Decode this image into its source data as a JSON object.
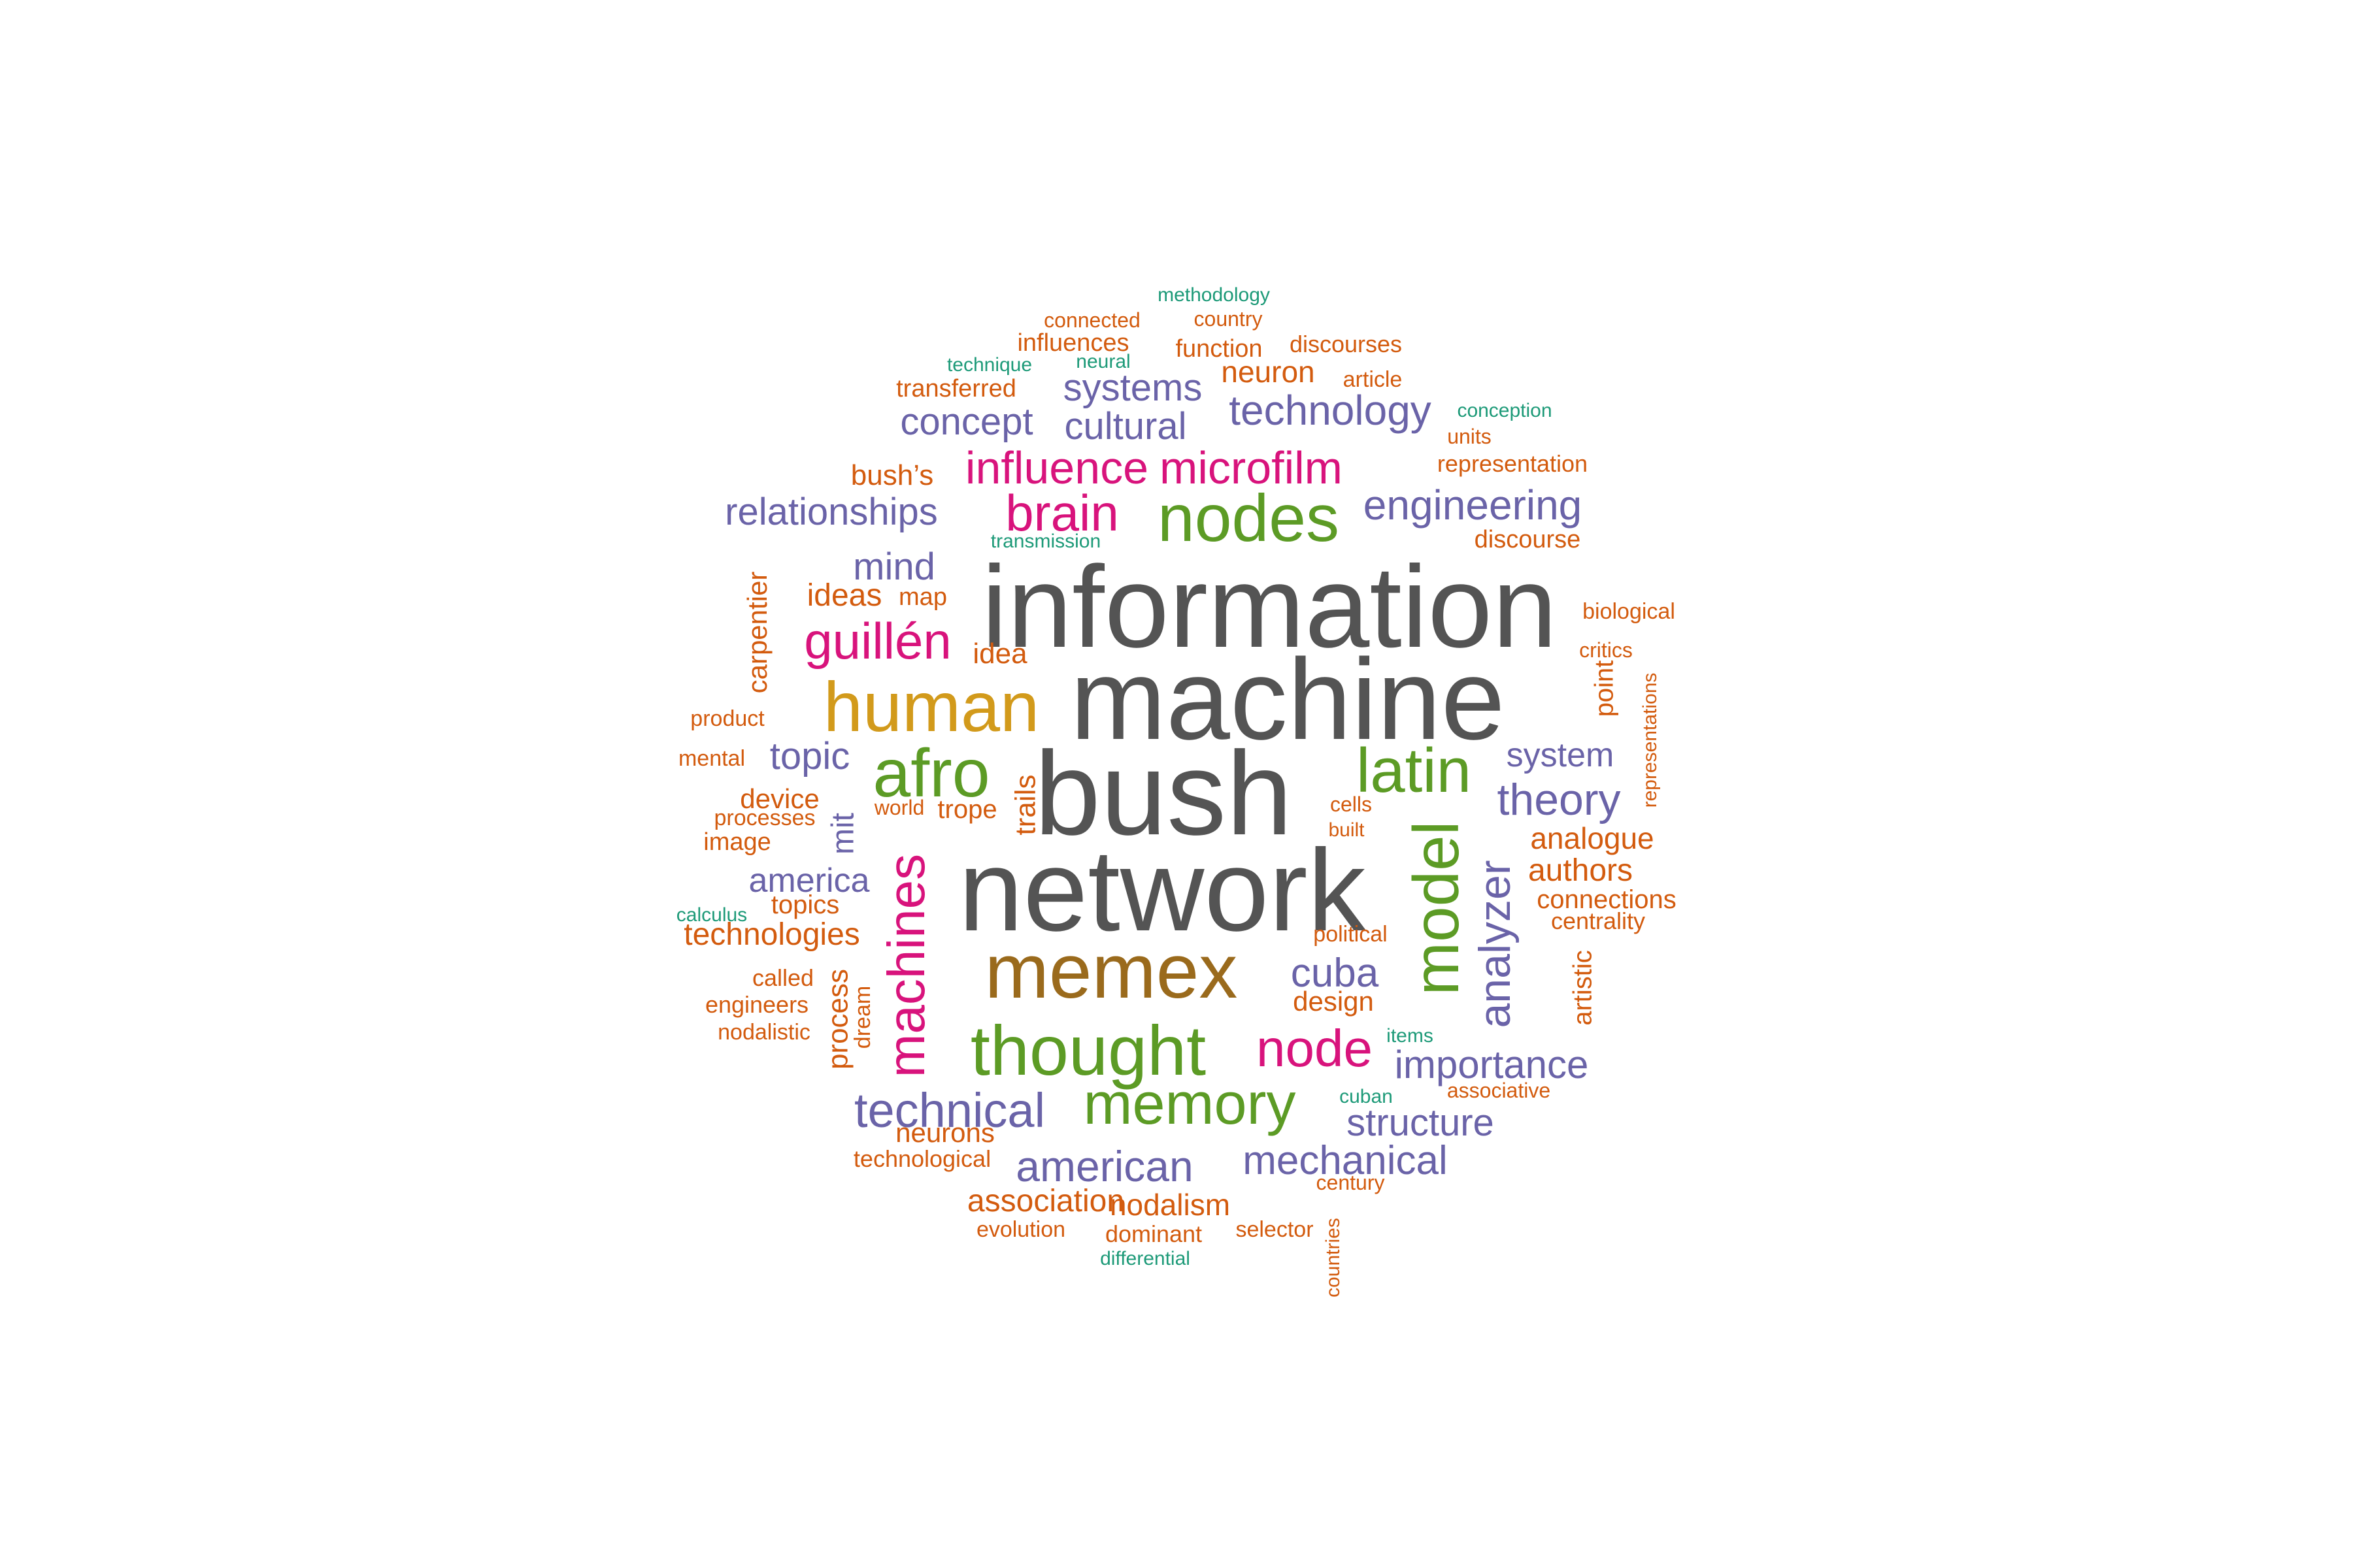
{
  "word_cloud": {
    "words": [
      {
        "text": "information",
        "color": "#545454"
      },
      {
        "text": "machine",
        "color": "#545454"
      },
      {
        "text": "bush",
        "color": "#545454"
      },
      {
        "text": "network",
        "color": "#545454"
      },
      {
        "text": "memex",
        "color": "#9a6a1c"
      },
      {
        "text": "human",
        "color": "#d29a1b"
      },
      {
        "text": "thought",
        "color": "#5c9b25"
      },
      {
        "text": "nodes",
        "color": "#5c9b25"
      },
      {
        "text": "afro",
        "color": "#5c9b25"
      },
      {
        "text": "latin",
        "color": "#5c9b25"
      },
      {
        "text": "model",
        "color": "#5c9b25"
      },
      {
        "text": "memory",
        "color": "#5c9b25"
      },
      {
        "text": "brain",
        "color": "#d8137c"
      },
      {
        "text": "influence",
        "color": "#d8137c"
      },
      {
        "text": "microfilm",
        "color": "#d8137c"
      },
      {
        "text": "guillén",
        "color": "#d8137c"
      },
      {
        "text": "machines",
        "color": "#d8137c"
      },
      {
        "text": "node",
        "color": "#d8137c"
      },
      {
        "text": "technology",
        "color": "#6a63a8"
      },
      {
        "text": "systems",
        "color": "#6a63a8"
      },
      {
        "text": "concept",
        "color": "#6a63a8"
      },
      {
        "text": "cultural",
        "color": "#6a63a8"
      },
      {
        "text": "relationships",
        "color": "#6a63a8"
      },
      {
        "text": "engineering",
        "color": "#6a63a8"
      },
      {
        "text": "mind",
        "color": "#6a63a8"
      },
      {
        "text": "topic",
        "color": "#6a63a8"
      },
      {
        "text": "system",
        "color": "#6a63a8"
      },
      {
        "text": "theory",
        "color": "#6a63a8"
      },
      {
        "text": "mit",
        "color": "#6a63a8"
      },
      {
        "text": "america",
        "color": "#6a63a8"
      },
      {
        "text": "analyzer",
        "color": "#6a63a8"
      },
      {
        "text": "cuba",
        "color": "#6a63a8"
      },
      {
        "text": "importance",
        "color": "#6a63a8"
      },
      {
        "text": "technical",
        "color": "#6a63a8"
      },
      {
        "text": "structure",
        "color": "#6a63a8"
      },
      {
        "text": "american",
        "color": "#6a63a8"
      },
      {
        "text": "mechanical",
        "color": "#6a63a8"
      },
      {
        "text": "methodology",
        "color": "#1d9a78"
      },
      {
        "text": "technique",
        "color": "#1d9a78"
      },
      {
        "text": "neural",
        "color": "#1d9a78"
      },
      {
        "text": "conception",
        "color": "#1d9a78"
      },
      {
        "text": "transmission",
        "color": "#1d9a78"
      },
      {
        "text": "calculus",
        "color": "#1d9a78"
      },
      {
        "text": "items",
        "color": "#1d9a78"
      },
      {
        "text": "cuban",
        "color": "#1d9a78"
      },
      {
        "text": "differential",
        "color": "#1d9a78"
      },
      {
        "text": "connected",
        "color": "#d35b0e"
      },
      {
        "text": "country",
        "color": "#d35b0e"
      },
      {
        "text": "influences",
        "color": "#d35b0e"
      },
      {
        "text": "function",
        "color": "#d35b0e"
      },
      {
        "text": "discourses",
        "color": "#d35b0e"
      },
      {
        "text": "transferred",
        "color": "#d35b0e"
      },
      {
        "text": "neuron",
        "color": "#d35b0e"
      },
      {
        "text": "article",
        "color": "#d35b0e"
      },
      {
        "text": "units",
        "color": "#d35b0e"
      },
      {
        "text": "bush’s",
        "color": "#d35b0e"
      },
      {
        "text": "representation",
        "color": "#d35b0e"
      },
      {
        "text": "discourse",
        "color": "#d35b0e"
      },
      {
        "text": "ideas",
        "color": "#d35b0e"
      },
      {
        "text": "map",
        "color": "#d35b0e"
      },
      {
        "text": "carpentier",
        "color": "#d35b0e"
      },
      {
        "text": "biological",
        "color": "#d35b0e"
      },
      {
        "text": "idea",
        "color": "#d35b0e"
      },
      {
        "text": "critics",
        "color": "#d35b0e"
      },
      {
        "text": "product",
        "color": "#d35b0e"
      },
      {
        "text": "point",
        "color": "#d35b0e"
      },
      {
        "text": "representations",
        "color": "#d35b0e"
      },
      {
        "text": "mental",
        "color": "#d35b0e"
      },
      {
        "text": "trails",
        "color": "#d35b0e"
      },
      {
        "text": "device",
        "color": "#d35b0e"
      },
      {
        "text": "world",
        "color": "#d35b0e"
      },
      {
        "text": "cells",
        "color": "#d35b0e"
      },
      {
        "text": "processes",
        "color": "#d35b0e"
      },
      {
        "text": "trope",
        "color": "#d35b0e"
      },
      {
        "text": "built",
        "color": "#d35b0e"
      },
      {
        "text": "image",
        "color": "#d35b0e"
      },
      {
        "text": "analogue",
        "color": "#d35b0e"
      },
      {
        "text": "authors",
        "color": "#d35b0e"
      },
      {
        "text": "topics",
        "color": "#d35b0e"
      },
      {
        "text": "connections",
        "color": "#d35b0e"
      },
      {
        "text": "technologies",
        "color": "#d35b0e"
      },
      {
        "text": "centrality",
        "color": "#d35b0e"
      },
      {
        "text": "political",
        "color": "#d35b0e"
      },
      {
        "text": "called",
        "color": "#d35b0e"
      },
      {
        "text": "process",
        "color": "#d35b0e"
      },
      {
        "text": "design",
        "color": "#d35b0e"
      },
      {
        "text": "artistic",
        "color": "#d35b0e"
      },
      {
        "text": "engineers",
        "color": "#d35b0e"
      },
      {
        "text": "dream",
        "color": "#d35b0e"
      },
      {
        "text": "nodalistic",
        "color": "#d35b0e"
      },
      {
        "text": "associative",
        "color": "#d35b0e"
      },
      {
        "text": "neurons",
        "color": "#d35b0e"
      },
      {
        "text": "technological",
        "color": "#d35b0e"
      },
      {
        "text": "century",
        "color": "#d35b0e"
      },
      {
        "text": "association",
        "color": "#d35b0e"
      },
      {
        "text": "nodalism",
        "color": "#d35b0e"
      },
      {
        "text": "evolution",
        "color": "#d35b0e"
      },
      {
        "text": "dominant",
        "color": "#d35b0e"
      },
      {
        "text": "selector",
        "color": "#d35b0e"
      },
      {
        "text": "countries",
        "color": "#d35b0e"
      }
    ]
  }
}
